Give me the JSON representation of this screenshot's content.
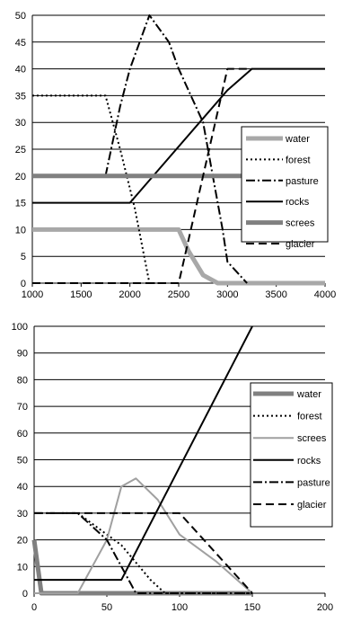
{
  "chart_data": [
    {
      "type": "line",
      "xlim": [
        1000,
        4000
      ],
      "ylim": [
        0,
        50
      ],
      "xticks": [
        1000,
        1500,
        2000,
        2500,
        3000,
        3500,
        4000
      ],
      "yticks": [
        0,
        5,
        10,
        15,
        20,
        25,
        30,
        35,
        40,
        45,
        50
      ],
      "grid": true,
      "legend_position": "right",
      "series": [
        {
          "name": "water",
          "color": "#a8a8a8",
          "style": "thick",
          "points": [
            [
              1000,
              10
            ],
            [
              2500,
              10
            ],
            [
              2600,
              6
            ],
            [
              2750,
              1.5
            ],
            [
              2900,
              0
            ],
            [
              4000,
              0
            ]
          ]
        },
        {
          "name": "forest",
          "color": "#000000",
          "style": "dotted",
          "points": [
            [
              1000,
              35
            ],
            [
              1750,
              35
            ],
            [
              1900,
              25
            ],
            [
              2050,
              14
            ],
            [
              2200,
              0
            ],
            [
              2300,
              0
            ]
          ]
        },
        {
          "name": "pasture",
          "color": "#000000",
          "style": "dashdot",
          "points": [
            [
              1750,
              20
            ],
            [
              1900,
              33
            ],
            [
              2000,
              40
            ],
            [
              2200,
              50
            ],
            [
              2400,
              45
            ],
            [
              2500,
              40
            ],
            [
              2750,
              30
            ],
            [
              2850,
              20
            ],
            [
              2950,
              10
            ],
            [
              3000,
              4
            ],
            [
              3100,
              2
            ],
            [
              3200,
              0
            ]
          ]
        },
        {
          "name": "rocks",
          "color": "#000000",
          "style": "solid",
          "points": [
            [
              1000,
              15
            ],
            [
              2000,
              15
            ],
            [
              3000,
              36
            ],
            [
              3250,
              40
            ],
            [
              4000,
              40
            ]
          ]
        },
        {
          "name": "screes",
          "color": "#808080",
          "style": "thick",
          "points": [
            [
              1000,
              20
            ],
            [
              4000,
              20
            ]
          ]
        },
        {
          "name": "glacier",
          "color": "#000000",
          "style": "dashed",
          "points": [
            [
              1000,
              0
            ],
            [
              2500,
              0
            ],
            [
              3000,
              40
            ],
            [
              3250,
              40
            ]
          ]
        }
      ]
    },
    {
      "type": "line",
      "xlim": [
        0,
        200
      ],
      "ylim": [
        0,
        100
      ],
      "xticks": [
        0,
        50,
        100,
        150,
        200
      ],
      "yticks": [
        0,
        10,
        20,
        30,
        40,
        50,
        60,
        70,
        80,
        90,
        100
      ],
      "grid": true,
      "legend_position": "right",
      "series": [
        {
          "name": "water",
          "color": "#808080",
          "style": "thick",
          "points": [
            [
              0,
              20
            ],
            [
              5,
              0
            ],
            [
              150,
              0
            ]
          ]
        },
        {
          "name": "forest",
          "color": "#000000",
          "style": "dotted",
          "points": [
            [
              30,
              30
            ],
            [
              60,
              18
            ],
            [
              80,
              5
            ],
            [
              90,
              0
            ],
            [
              150,
              0
            ]
          ]
        },
        {
          "name": "screes",
          "color": "#a0a0a0",
          "style": "solid",
          "points": [
            [
              0,
              0
            ],
            [
              30,
              0
            ],
            [
              50,
              20
            ],
            [
              60,
              40
            ],
            [
              70,
              43
            ],
            [
              85,
              35
            ],
            [
              100,
              22
            ],
            [
              125,
              12
            ],
            [
              150,
              0
            ]
          ]
        },
        {
          "name": "rocks",
          "color": "#000000",
          "style": "solid",
          "points": [
            [
              0,
              5
            ],
            [
              60,
              5
            ],
            [
              150,
              100
            ]
          ]
        },
        {
          "name": "pasture",
          "color": "#000000",
          "style": "dashdot",
          "points": [
            [
              0,
              30
            ],
            [
              30,
              30
            ],
            [
              50,
              20
            ],
            [
              70,
              0
            ],
            [
              150,
              0
            ]
          ]
        },
        {
          "name": "glacier",
          "color": "#000000",
          "style": "dashed",
          "points": [
            [
              0,
              30
            ],
            [
              100,
              30
            ],
            [
              150,
              0
            ]
          ]
        }
      ]
    }
  ]
}
